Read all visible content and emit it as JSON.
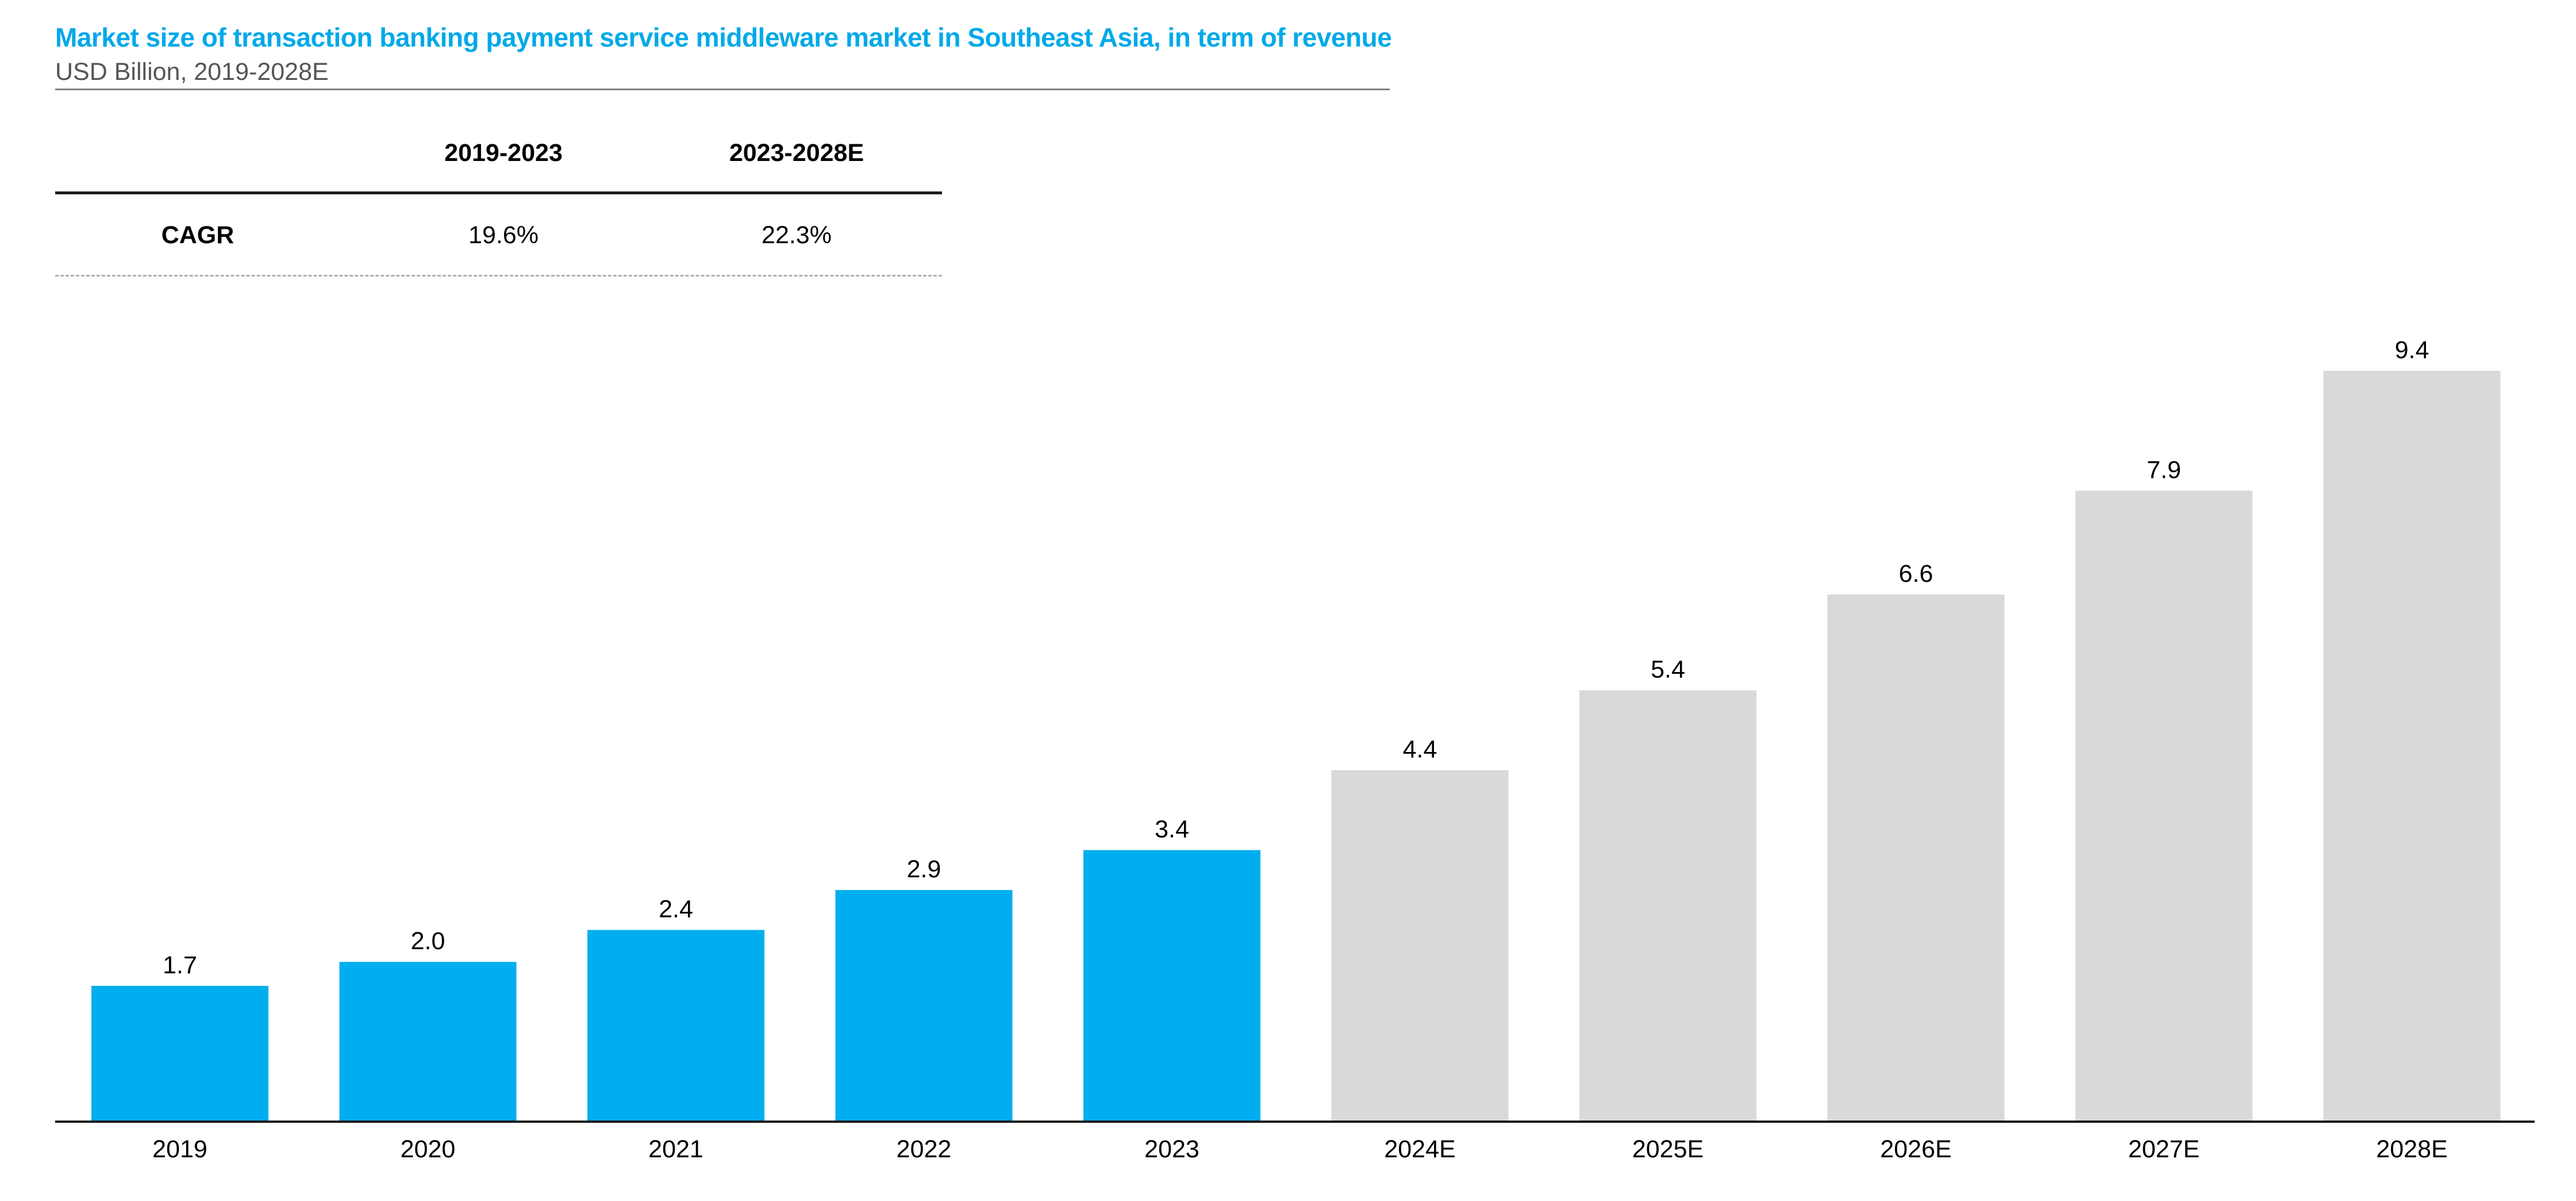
{
  "header": {
    "title": "Market size of transaction banking payment service middleware market in Southeast Asia, in term of revenue",
    "subtitle": "USD Billion, 2019-2028E"
  },
  "cagr_table": {
    "columns": [
      "2019-2023",
      "2023-2028E"
    ],
    "row_label": "CAGR",
    "values": [
      "19.6%",
      "22.3%"
    ]
  },
  "colors": {
    "title": "#00A9E8",
    "actual_bar": "#00AEEF",
    "forecast_bar": "#D9D9D9",
    "axis": "#1a1a1a"
  },
  "chart_data": {
    "type": "bar",
    "title": "Market size of transaction banking payment service middleware market in Southeast Asia, in term of revenue",
    "ylabel": "",
    "xlabel": "",
    "ylim": [
      0,
      9.4
    ],
    "grid": false,
    "categories": [
      "2019",
      "2020",
      "2021",
      "2022",
      "2023",
      "2024E",
      "2025E",
      "2026E",
      "2027E",
      "2028E"
    ],
    "values": [
      1.7,
      2.0,
      2.4,
      2.9,
      3.4,
      4.4,
      5.4,
      6.6,
      7.9,
      9.4
    ],
    "labels": [
      "1.7",
      "2.0",
      "2.4",
      "2.9",
      "3.4",
      "4.4",
      "5.4",
      "6.6",
      "7.9",
      "9.4"
    ],
    "forecast": [
      false,
      false,
      false,
      false,
      false,
      true,
      true,
      true,
      true,
      true
    ]
  }
}
